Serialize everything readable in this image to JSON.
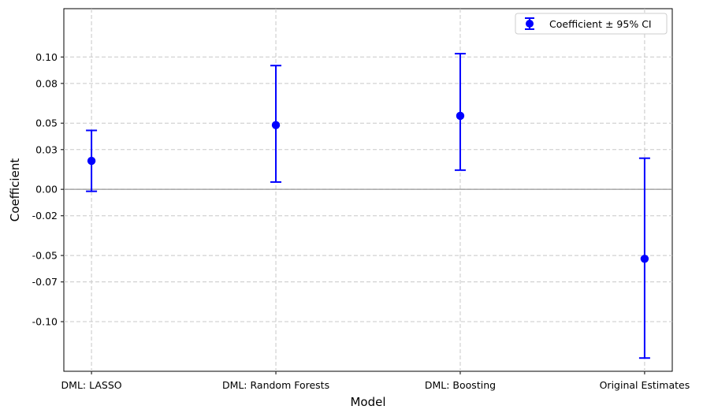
{
  "chart_data": {
    "type": "errorbar",
    "title": "",
    "xlabel": "Model",
    "ylabel": "Coefficient",
    "categories": [
      "DML: LASSO",
      "DML: Random Forests",
      "DML: Boosting",
      "Original Estimates"
    ],
    "series": [
      {
        "name": "Coefficient ± 95% CI",
        "values": [
          0.0215,
          0.0485,
          0.0555,
          -0.0525
        ],
        "ci_lower": [
          -0.0015,
          0.0055,
          0.0145,
          -0.1275
        ],
        "ci_upper": [
          0.0445,
          0.0935,
          0.1025,
          0.0235
        ],
        "color": "#0000ff"
      }
    ],
    "yticks": [
      0.1,
      0.08,
      0.05,
      0.03,
      0.0,
      -0.02,
      -0.05,
      -0.07,
      -0.1
    ],
    "ytick_labels": [
      "0.10",
      "0.08",
      "0.05",
      "0.03",
      "0.00",
      "-0.02",
      "-0.05",
      "-0.07",
      "-0.10"
    ],
    "ylim": [
      -0.1375,
      0.1365
    ],
    "xlim": [
      -0.15,
      3.15
    ],
    "grid": true,
    "zero_line": true,
    "legend_position": "top-right"
  }
}
